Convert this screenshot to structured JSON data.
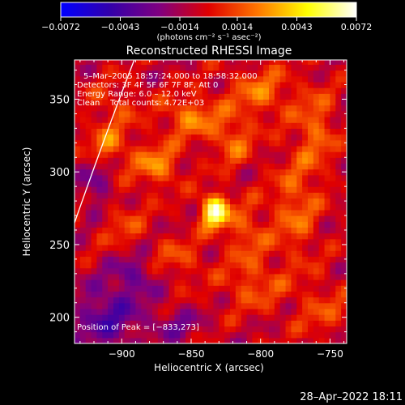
{
  "chart_data": {
    "type": "heatmap",
    "title": "Reconstructed RHESSI Image",
    "xlabel": "Heliocentric X (arcsec)",
    "ylabel": "Heliocentric Y (arcsec)",
    "xlim": [
      -934,
      -738
    ],
    "ylim": [
      182,
      377
    ],
    "x_ticks": [
      -900,
      -850,
      -800,
      -750
    ],
    "x_tick_labels": [
      "−900",
      "−850",
      "−800",
      "−750"
    ],
    "y_ticks": [
      200,
      250,
      300,
      350
    ],
    "y_tick_labels": [
      "200",
      "250",
      "300",
      "350"
    ],
    "colorbar": {
      "range": [
        -0.0072,
        0.0072
      ],
      "ticks": [
        -0.0072,
        -0.0043,
        -0.0014,
        0.0014,
        0.0043,
        0.0072
      ],
      "tick_labels": [
        "−0.0072",
        "−0.0043",
        "−0.0014",
        "0.0014",
        "0.0043",
        "0.0072"
      ],
      "unit_label": "(photons cm⁻² s⁻¹ asec⁻²)",
      "colors": [
        "#0000ff",
        "#3300aa",
        "#800080",
        "#e00000",
        "#ff7700",
        "#ffff00",
        "#ffffff"
      ]
    },
    "info_lines": [
      "5–Mar–2005 18:57:24.000 to 18:58:32.000",
      "Detectors: 3F 4F 5F 6F 7F 8F, Att 0",
      "Energy Range: 6.0 – 12.0 keV",
      "Clean    Total counts: 4.72E+03"
    ],
    "peak_label": "Position of Peak = [−833,273]",
    "peak": {
      "x": -833,
      "y": 273,
      "value": 0.0072
    },
    "limb_arc": [
      [
        -934,
        265
      ],
      [
        -912,
        325
      ],
      [
        -891,
        377
      ]
    ],
    "emission_blobs": [
      {
        "x": -833,
        "y": 273,
        "sx": 7,
        "sy": 8,
        "value": 0.0072
      },
      {
        "x": -875,
        "y": 305,
        "sx": 12,
        "sy": 10,
        "value": 0.0032
      },
      {
        "x": -910,
        "y": 318,
        "sx": 10,
        "sy": 9,
        "value": 0.0028
      },
      {
        "x": -850,
        "y": 338,
        "sx": 14,
        "sy": 10,
        "value": 0.003
      },
      {
        "x": -800,
        "y": 355,
        "sx": 16,
        "sy": 12,
        "value": 0.0026
      },
      {
        "x": -820,
        "y": 322,
        "sx": 10,
        "sy": 12,
        "value": 0.0025
      },
      {
        "x": -760,
        "y": 330,
        "sx": 10,
        "sy": 20,
        "value": 0.0024
      },
      {
        "x": -775,
        "y": 275,
        "sx": 12,
        "sy": 25,
        "value": 0.0024
      },
      {
        "x": -810,
        "y": 258,
        "sx": 10,
        "sy": 14,
        "value": 0.0022
      },
      {
        "x": -805,
        "y": 222,
        "sx": 16,
        "sy": 12,
        "value": 0.002
      },
      {
        "x": -860,
        "y": 240,
        "sx": 14,
        "sy": 10,
        "value": 0.0018
      },
      {
        "x": -900,
        "y": 265,
        "sx": 12,
        "sy": 12,
        "value": 0.0016
      },
      {
        "x": -905,
        "y": 345,
        "sx": 14,
        "sy": 12,
        "value": 0.0015
      },
      {
        "x": -755,
        "y": 205,
        "sx": 14,
        "sy": 14,
        "value": 0.0016
      },
      {
        "x": -910,
        "y": 200,
        "sx": 18,
        "sy": 16,
        "value": -0.003
      },
      {
        "x": -890,
        "y": 230,
        "sx": 12,
        "sy": 10,
        "value": -0.0022
      },
      {
        "x": -918,
        "y": 290,
        "sx": 8,
        "sy": 14,
        "value": -0.002
      },
      {
        "x": -860,
        "y": 195,
        "sx": 12,
        "sy": 8,
        "value": -0.0018
      }
    ]
  },
  "timestamp": "28–Apr–2022 18:11"
}
